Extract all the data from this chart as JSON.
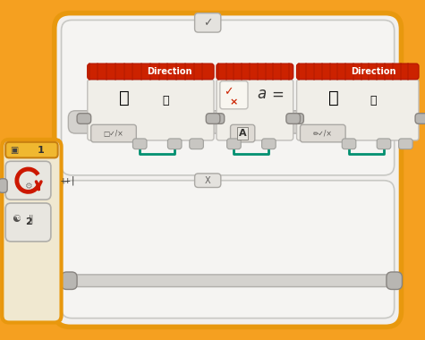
{
  "bg_color": "#f5a020",
  "outer_container_fill": "#f2f0ee",
  "outer_container_edge": "#e8980e",
  "inner_top_fill": "#f5f4f2",
  "inner_top_edge": "#c8c8c4",
  "inner_bottom_fill": "#f5f4f2",
  "inner_bottom_edge": "#c8c8c4",
  "red_header_dark": "#b81800",
  "red_header_mid": "#cc2200",
  "red_header_light": "#dd3300",
  "block_body_fill": "#e8e6e2",
  "block_body_edge": "#b0aeaa",
  "connector_fill": "#b8b6b2",
  "connector_edge": "#888480",
  "teal_wire": "#009070",
  "mini_block_fill": "#dedad4",
  "mini_block_edge": "#aaa8a4",
  "check_box_fill": "#f0eee8",
  "white": "#ffffff",
  "sidebar_fill": "#f0e8d0",
  "sidebar_edge": "#e8980e",
  "label1_fill": "#f0b830",
  "label1_edge": "#c88010",
  "direction_text": "Direction",
  "check_sym": "✓",
  "x_sym": "X",
  "label1": "1",
  "label2": "2"
}
